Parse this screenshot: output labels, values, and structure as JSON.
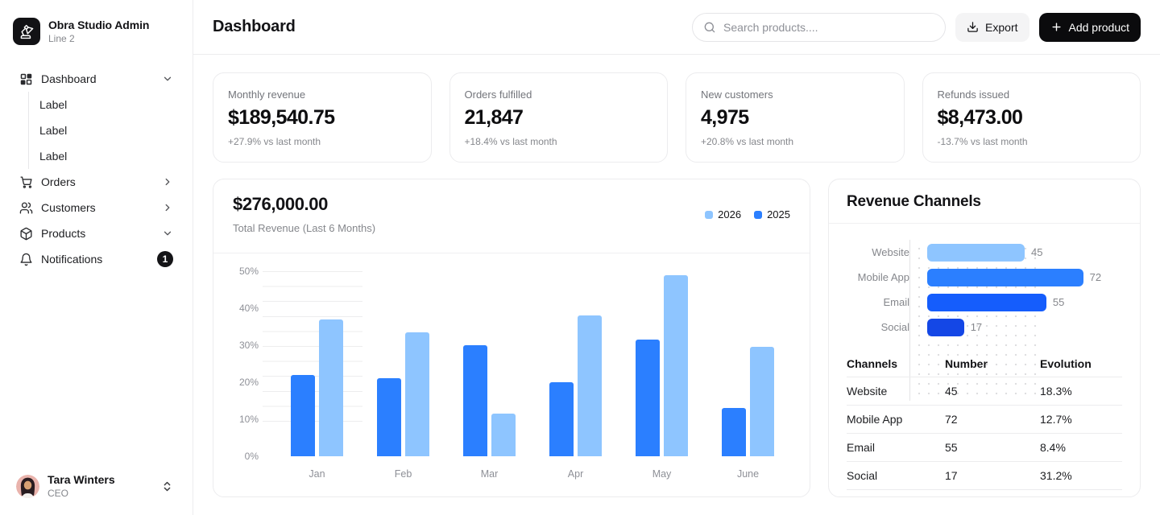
{
  "sidebar": {
    "brand": {
      "title": "Obra Studio Admin",
      "subtitle": "Line 2",
      "logo_icon": "desk-lamp-icon"
    },
    "nav": {
      "dashboard": {
        "label": "Dashboard",
        "icon": "dashboard-icon",
        "chevron": "down"
      },
      "dashboard_children": [
        "Label",
        "Label",
        "Label"
      ],
      "orders": {
        "label": "Orders",
        "icon": "cart-icon",
        "chevron": "right"
      },
      "customers": {
        "label": "Customers",
        "icon": "users-icon",
        "chevron": "right"
      },
      "products": {
        "label": "Products",
        "icon": "package-icon",
        "chevron": "down"
      },
      "notifications": {
        "label": "Notifications",
        "icon": "bell-icon",
        "badge": "1"
      }
    },
    "user": {
      "name": "Tara Winters",
      "role": "CEO"
    }
  },
  "header": {
    "title": "Dashboard",
    "search_placeholder": "Search products....",
    "export_label": "Export",
    "add_product_label": "Add product"
  },
  "kpis": [
    {
      "label": "Monthly revenue",
      "value": "$189,540.75",
      "delta": "+27.9% vs last month"
    },
    {
      "label": "Orders fulfilled",
      "value": "21,847",
      "delta": "+18.4% vs last month"
    },
    {
      "label": "New customers",
      "value": "4,975",
      "delta": "+20.8% vs last month"
    },
    {
      "label": "Refunds issued",
      "value": "$8,473.00",
      "delta": "-13.7% vs last month"
    }
  ],
  "chart_data": [
    {
      "type": "bar",
      "title": "$276,000.00",
      "subtitle": "Total Revenue (Last 6 Months)",
      "categories": [
        "Jan",
        "Feb",
        "Mar",
        "Apr",
        "May",
        "June"
      ],
      "series": [
        {
          "name": "2025",
          "color": "#2b7fff",
          "values": [
            22,
            21,
            30,
            20,
            31.5,
            13
          ]
        },
        {
          "name": "2026",
          "color": "#8ec5ff",
          "values": [
            37,
            33.5,
            11.5,
            38,
            49,
            29.5
          ]
        }
      ],
      "legend_order": [
        "2026",
        "2025"
      ],
      "legend_position": "top-right",
      "yticks": [
        "0%",
        "10%",
        "20%",
        "30%",
        "40%",
        "50%"
      ],
      "ylim": [
        0,
        50
      ],
      "grid": "partial-left",
      "unit": "%"
    },
    {
      "type": "bar",
      "orientation": "horizontal",
      "title": "Revenue Channels",
      "categories": [
        "Website",
        "Mobile App",
        "Email",
        "Social"
      ],
      "values": [
        45,
        72,
        55,
        17
      ],
      "colors": [
        "#8ec5ff",
        "#2b7fff",
        "#155dfc",
        "#1447e6"
      ],
      "xlim": [
        0,
        90
      ],
      "grid": "dotted"
    },
    {
      "type": "table",
      "columns": [
        "Channels",
        "Number",
        "Evolution"
      ],
      "rows": [
        [
          "Website",
          "45",
          "18.3%"
        ],
        [
          "Mobile App",
          "72",
          "12.7%"
        ],
        [
          "Email",
          "55",
          "8.4%"
        ],
        [
          "Social",
          "17",
          "31.2%"
        ]
      ]
    }
  ],
  "colors": {
    "accent_light": "#8ec5ff",
    "accent": "#2b7fff",
    "accent_deep": "#155dfc",
    "accent_dark": "#1447e6",
    "button_dark": "#0b0b0d",
    "border": "#ececee",
    "text_muted": "#85878c"
  }
}
